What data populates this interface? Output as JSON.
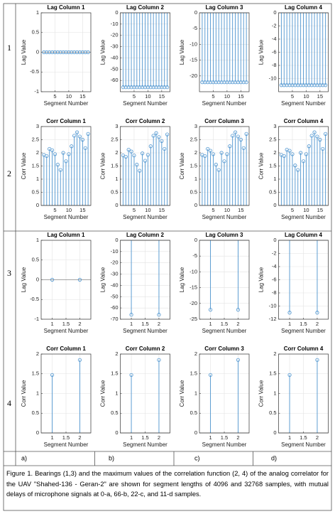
{
  "row_labels": [
    "1",
    "2",
    "3",
    "4"
  ],
  "column_labels": [
    "a)",
    "b)",
    "c)",
    "d)"
  ],
  "caption": "Figure 1. Bearings (1,3) and the maximum values of the correlation function (2, 4) of the analog correlator for the UAV \"Shahed-136 - Geran-2\" are shown for segment lengths of 4096 and 32768 samples, with mutual delays of microphone signals at 0-a, 66-b, 22-c, and 11-d samples.",
  "chart_data": [
    {
      "type": "stem",
      "title": "Lag Column 1",
      "x_label": "Segment Number",
      "y_label": "Lag Value",
      "color": "#4d94cf",
      "grid": true,
      "x": [
        1,
        2,
        3,
        4,
        5,
        6,
        7,
        8,
        9,
        10,
        11,
        12,
        13,
        14,
        15,
        16,
        17
      ],
      "values": [
        0,
        0,
        0,
        0,
        0,
        0,
        0,
        0,
        0,
        0,
        0,
        0,
        0,
        0,
        0,
        0,
        0
      ],
      "xlim": [
        0,
        18
      ],
      "xticks": [
        5,
        10,
        15
      ],
      "ylim": [
        -1,
        1
      ],
      "yticks": [
        -1,
        -0.5,
        0,
        0.5,
        1
      ]
    },
    {
      "type": "stem",
      "title": "Lag Column 2",
      "x_label": "Segment Number",
      "y_label": "Lag Value",
      "color": "#4d94cf",
      "grid": true,
      "x": [
        1,
        2,
        3,
        4,
        5,
        6,
        7,
        8,
        9,
        10,
        11,
        12,
        13,
        14,
        15,
        16,
        17
      ],
      "values": [
        -66,
        -66,
        -66,
        -66,
        -66,
        -66,
        -66,
        -66,
        -66,
        -66,
        -66,
        -66,
        -66,
        -66,
        -66,
        -66,
        -66
      ],
      "xlim": [
        0,
        18
      ],
      "xticks": [
        5,
        10,
        15
      ],
      "ylim": [
        -70,
        0
      ],
      "yticks": [
        -60,
        -50,
        -40,
        -30,
        -20,
        -10,
        0
      ]
    },
    {
      "type": "stem",
      "title": "Lag Column 3",
      "x_label": "Segment Number",
      "y_label": "Lag Value",
      "color": "#4d94cf",
      "grid": true,
      "x": [
        1,
        2,
        3,
        4,
        5,
        6,
        7,
        8,
        9,
        10,
        11,
        12,
        13,
        14,
        15,
        16,
        17
      ],
      "values": [
        -22,
        -22,
        -22,
        -22,
        -22,
        -22,
        -22,
        -22,
        -22,
        -22,
        -22,
        -22,
        -22,
        -22,
        -22,
        -22,
        -22
      ],
      "xlim": [
        0,
        18
      ],
      "xticks": [
        5,
        10,
        15
      ],
      "ylim": [
        -25,
        0
      ],
      "yticks": [
        -20,
        -15,
        -10,
        -5,
        0
      ]
    },
    {
      "type": "stem",
      "title": "Lag Column 4",
      "x_label": "Segment Number",
      "y_label": "Lag Value",
      "color": "#4d94cf",
      "grid": true,
      "x": [
        1,
        2,
        3,
        4,
        5,
        6,
        7,
        8,
        9,
        10,
        11,
        12,
        13,
        14,
        15,
        16,
        17
      ],
      "values": [
        -11,
        -11,
        -11,
        -11,
        -11,
        -11,
        -11,
        -11,
        -11,
        -11,
        -11,
        -11,
        -11,
        -11,
        -11,
        -11,
        -11
      ],
      "xlim": [
        0,
        18
      ],
      "xticks": [
        5,
        10,
        15
      ],
      "ylim": [
        -12,
        0
      ],
      "yticks": [
        -10,
        -8,
        -6,
        -4,
        -2,
        0
      ]
    },
    {
      "type": "stem",
      "title": "Corr Column 1",
      "x_label": "Segment Number",
      "y_label": "Corr Value",
      "color": "#4d94cf",
      "grid": true,
      "x": [
        1,
        2,
        3,
        4,
        5,
        6,
        7,
        8,
        9,
        10,
        11,
        12,
        13,
        14,
        15,
        16,
        17
      ],
      "values": [
        1.92,
        1.88,
        2.15,
        2.1,
        1.95,
        1.55,
        1.35,
        2.0,
        1.68,
        1.95,
        2.25,
        2.65,
        2.78,
        2.62,
        2.5,
        2.18,
        2.72
      ],
      "xlim": [
        0,
        18
      ],
      "xticks": [
        5,
        10,
        15
      ],
      "ylim": [
        0,
        3
      ],
      "yticks": [
        0,
        0.5,
        1,
        1.5,
        2,
        2.5,
        3
      ]
    },
    {
      "type": "stem",
      "title": "Corr Column 2",
      "x_label": "Segment Number",
      "y_label": "Corr Value",
      "color": "#4d94cf",
      "grid": true,
      "x": [
        1,
        2,
        3,
        4,
        5,
        6,
        7,
        8,
        9,
        10,
        11,
        12,
        13,
        14,
        15,
        16,
        17
      ],
      "values": [
        1.9,
        1.85,
        2.12,
        2.05,
        1.9,
        1.55,
        1.32,
        1.98,
        1.7,
        1.92,
        2.25,
        2.65,
        2.75,
        2.6,
        2.45,
        2.15,
        2.7
      ],
      "xlim": [
        0,
        18
      ],
      "xticks": [
        5,
        10,
        15
      ],
      "ylim": [
        0,
        3
      ],
      "yticks": [
        0,
        0.5,
        1,
        1.5,
        2,
        2.5,
        3
      ]
    },
    {
      "type": "stem",
      "title": "Corr Column 3",
      "x_label": "Segment Number",
      "y_label": "Corr Value",
      "color": "#4d94cf",
      "grid": true,
      "x": [
        1,
        2,
        3,
        4,
        5,
        6,
        7,
        8,
        9,
        10,
        11,
        12,
        13,
        14,
        15,
        16,
        17
      ],
      "values": [
        1.92,
        1.88,
        2.15,
        2.08,
        1.95,
        1.55,
        1.35,
        2.0,
        1.68,
        1.95,
        2.25,
        2.65,
        2.78,
        2.62,
        2.5,
        2.18,
        2.72
      ],
      "xlim": [
        0,
        18
      ],
      "xticks": [
        5,
        10,
        15
      ],
      "ylim": [
        0,
        3
      ],
      "yticks": [
        0,
        0.5,
        1,
        1.5,
        2,
        2.5,
        3
      ]
    },
    {
      "type": "stem",
      "title": "Corr Column 4",
      "x_label": "Segment Number",
      "y_label": "Corr Value",
      "color": "#4d94cf",
      "grid": true,
      "x": [
        1,
        2,
        3,
        4,
        5,
        6,
        7,
        8,
        9,
        10,
        11,
        12,
        13,
        14,
        15,
        16,
        17
      ],
      "values": [
        1.92,
        1.88,
        2.12,
        2.08,
        1.95,
        1.52,
        1.35,
        2.0,
        1.68,
        1.95,
        2.25,
        2.65,
        2.78,
        2.62,
        2.5,
        2.15,
        2.72
      ],
      "xlim": [
        0,
        18
      ],
      "xticks": [
        5,
        10,
        15
      ],
      "ylim": [
        0,
        3
      ],
      "yticks": [
        0,
        0.5,
        1,
        1.5,
        2,
        2.5,
        3
      ]
    },
    {
      "type": "stem",
      "title": "Lag Column 1",
      "x_label": "Segment Number",
      "y_label": "Lag Value",
      "color": "#4d94cf",
      "grid": true,
      "x": [
        1,
        2
      ],
      "values": [
        0,
        0
      ],
      "xlim": [
        0.6,
        2.4
      ],
      "xticks": [
        1,
        1.5,
        2
      ],
      "ylim": [
        -1,
        1
      ],
      "yticks": [
        -1,
        -0.5,
        0,
        0.5,
        1
      ]
    },
    {
      "type": "stem",
      "title": "Lag Column 2",
      "x_label": "Segment Number",
      "y_label": "Lag Value",
      "color": "#4d94cf",
      "grid": true,
      "x": [
        1,
        2
      ],
      "values": [
        -66,
        -66
      ],
      "xlim": [
        0.6,
        2.4
      ],
      "xticks": [
        1,
        1.5,
        2
      ],
      "ylim": [
        -70,
        0
      ],
      "yticks": [
        -70,
        -60,
        -50,
        -40,
        -30,
        -20,
        -10,
        0
      ]
    },
    {
      "type": "stem",
      "title": "Lag Column 3",
      "x_label": "Segment Number",
      "y_label": "Lag Value",
      "color": "#4d94cf",
      "grid": true,
      "x": [
        1,
        2
      ],
      "values": [
        -22,
        -22
      ],
      "xlim": [
        0.6,
        2.4
      ],
      "xticks": [
        1,
        1.5,
        2
      ],
      "ylim": [
        -25,
        0
      ],
      "yticks": [
        -25,
        -20,
        -15,
        -10,
        -5,
        0
      ]
    },
    {
      "type": "stem",
      "title": "Lag Column 4",
      "x_label": "Segment Number",
      "y_label": "Lag Value",
      "color": "#4d94cf",
      "grid": true,
      "x": [
        1,
        2
      ],
      "values": [
        -11,
        -11
      ],
      "xlim": [
        0.6,
        2.4
      ],
      "xticks": [
        1,
        1.5,
        2
      ],
      "ylim": [
        -12,
        0
      ],
      "yticks": [
        -12,
        -10,
        -8,
        -6,
        -4,
        -2,
        0
      ]
    },
    {
      "type": "stem",
      "title": "Corr Column 1",
      "x_label": "Segment Number",
      "y_label": "Corr Value",
      "color": "#4d94cf",
      "grid": true,
      "x": [
        1,
        2
      ],
      "values": [
        1.47,
        1.85
      ],
      "xlim": [
        0.6,
        2.4
      ],
      "xticks": [
        1,
        1.5,
        2
      ],
      "ylim": [
        0,
        2
      ],
      "yticks": [
        0,
        0.5,
        1,
        1.5,
        2
      ]
    },
    {
      "type": "stem",
      "title": "Corr Column 2",
      "x_label": "Segment Number",
      "y_label": "Corr Value",
      "color": "#4d94cf",
      "grid": true,
      "x": [
        1,
        2
      ],
      "values": [
        1.47,
        1.85
      ],
      "xlim": [
        0.6,
        2.4
      ],
      "xticks": [
        1,
        1.5,
        2
      ],
      "ylim": [
        0,
        2
      ],
      "yticks": [
        0,
        0.5,
        1,
        1.5,
        2
      ]
    },
    {
      "type": "stem",
      "title": "Corr Column 3",
      "x_label": "Segment Number",
      "y_label": "Corr Value",
      "color": "#4d94cf",
      "grid": true,
      "x": [
        1,
        2
      ],
      "values": [
        1.47,
        1.85
      ],
      "xlim": [
        0.6,
        2.4
      ],
      "xticks": [
        1,
        1.5,
        2
      ],
      "ylim": [
        0,
        2
      ],
      "yticks": [
        0,
        0.5,
        1,
        1.5,
        2
      ]
    },
    {
      "type": "stem",
      "title": "Corr Column 4",
      "x_label": "Segment Number",
      "y_label": "Corr Value",
      "color": "#4d94cf",
      "grid": true,
      "x": [
        1,
        2
      ],
      "values": [
        1.47,
        1.85
      ],
      "xlim": [
        0.6,
        2.4
      ],
      "xticks": [
        1,
        1.5,
        2
      ],
      "ylim": [
        0,
        2
      ],
      "yticks": [
        0,
        0.5,
        1,
        1.5,
        2
      ]
    }
  ]
}
